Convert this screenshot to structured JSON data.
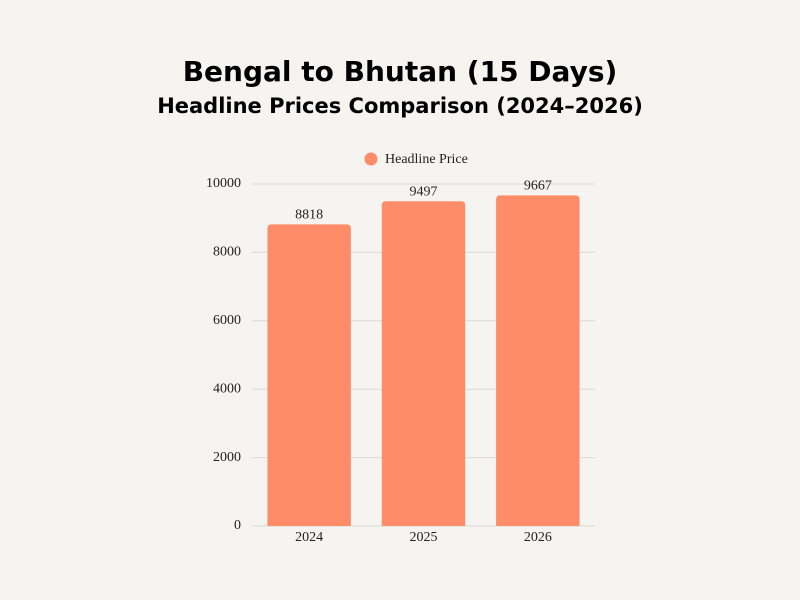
{
  "chart_data": {
    "type": "bar",
    "title": "Bengal to Bhutan (15 Days)",
    "subtitle": "Headline Prices Comparison (2024–2026)",
    "categories": [
      "2024",
      "2025",
      "2026"
    ],
    "series": [
      {
        "name": "Headline Price",
        "color": "#ff8c69",
        "values": [
          8818,
          9497,
          9667
        ]
      }
    ],
    "ylim": [
      0,
      10000
    ],
    "yticks": [
      0,
      2000,
      4000,
      6000,
      8000,
      10000
    ],
    "grid": true,
    "legend": "top"
  }
}
